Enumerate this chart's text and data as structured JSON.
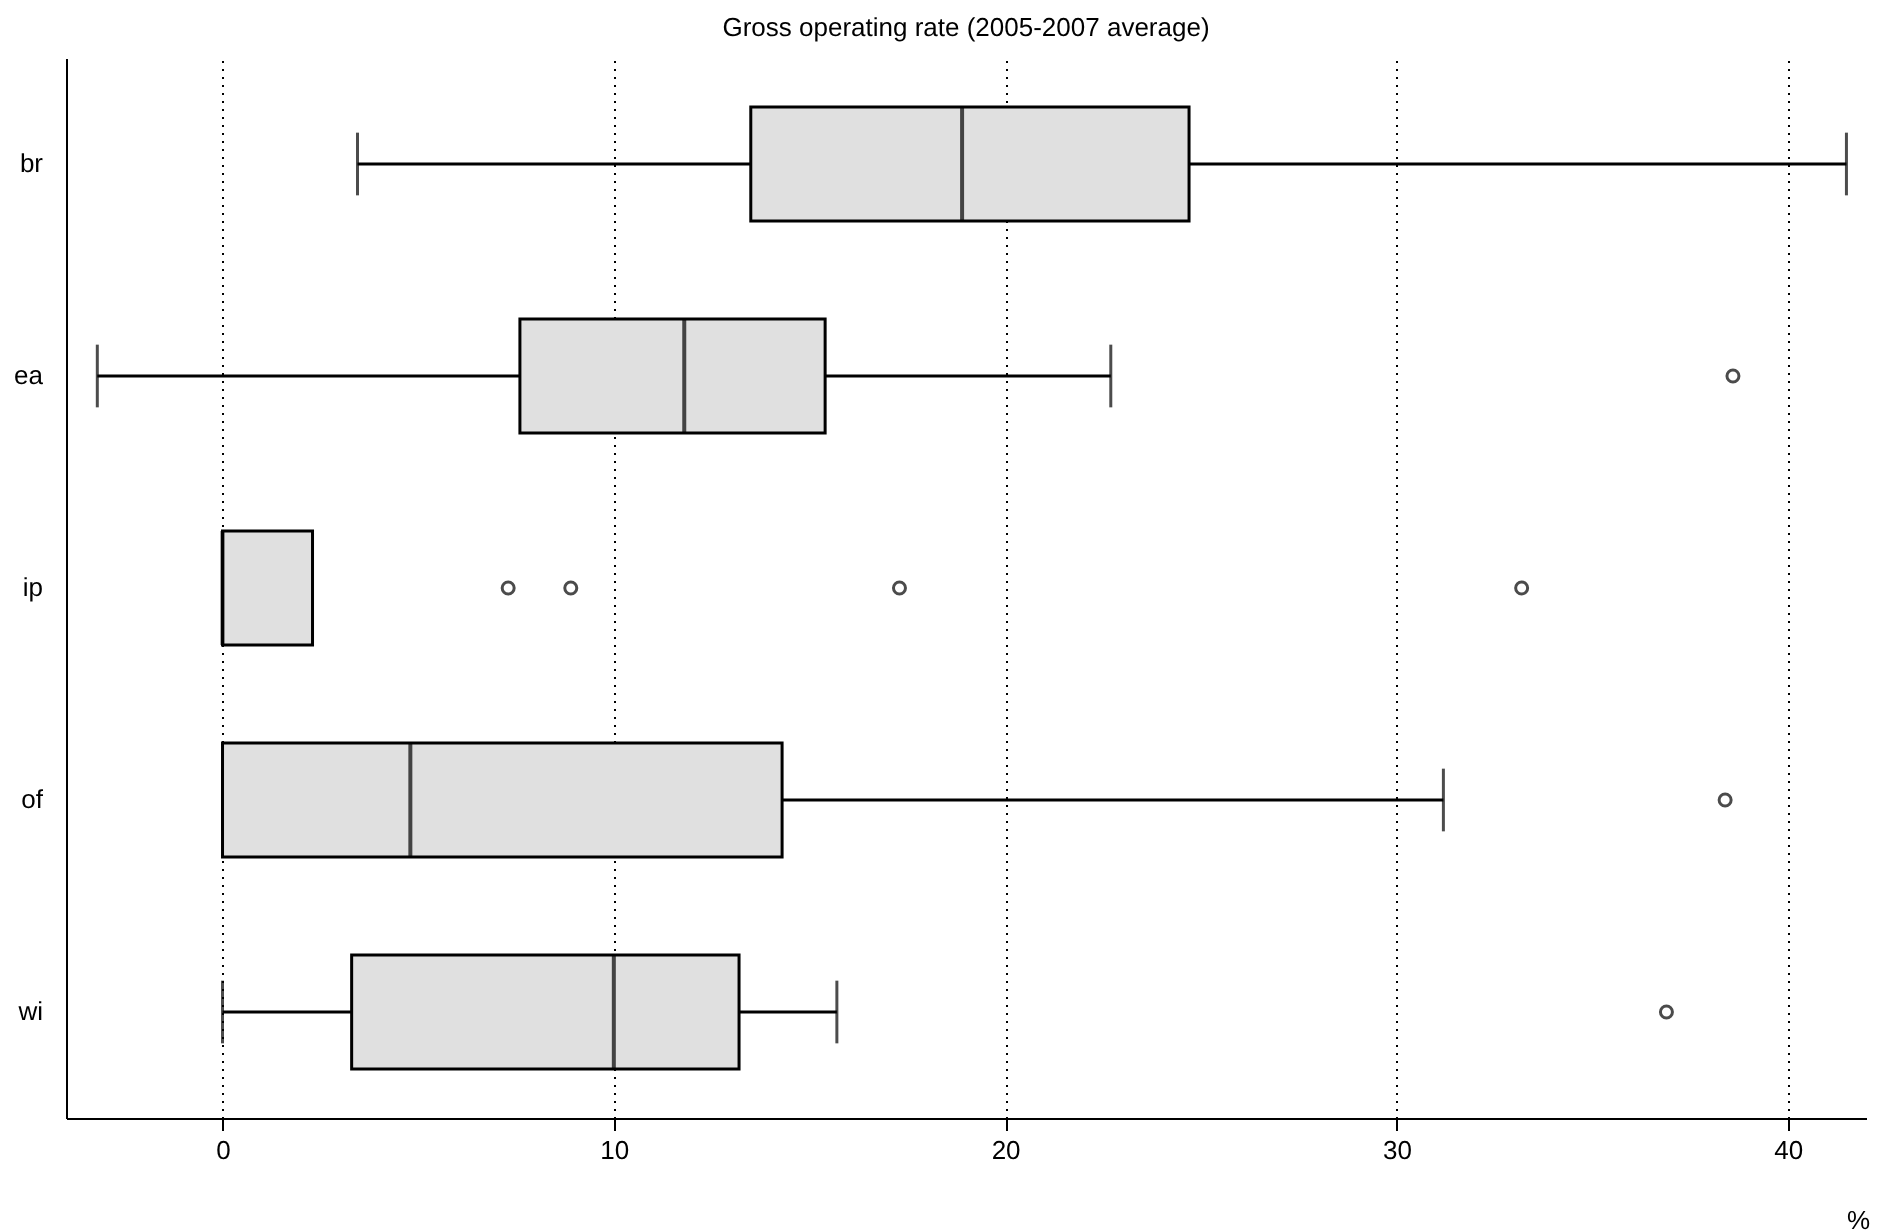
{
  "chart_data": {
    "type": "box",
    "title": "Gross operating rate (2005-2007 average)",
    "xlabel": "%",
    "orientation": "horizontal",
    "categories": [
      "br",
      "ea",
      "ip",
      "of",
      "wi"
    ],
    "series": [
      {
        "color": "#e0e0e0",
        "boxes": [
          {
            "low": 3.45,
            "q1": 13.5,
            "median": 18.9,
            "q3": 24.7,
            "high": 41.5
          },
          {
            "low": -3.2,
            "q1": 7.6,
            "median": 11.8,
            "q3": 15.4,
            "high": 22.7,
            "outliers": [
              38.6
            ]
          },
          {
            "low": 0,
            "q1": 0,
            "median": 0,
            "q3": 2.3,
            "high": 2.3,
            "outliers": [
              7.3,
              8.9,
              17.3,
              33.2
            ]
          },
          {
            "low": 0,
            "q1": 0,
            "median": 4.8,
            "q3": 14.3,
            "high": 31.2,
            "outliers": [
              38.4
            ]
          },
          {
            "low": 0,
            "q1": 3.3,
            "median": 10,
            "q3": 13.2,
            "high": 15.7,
            "outliers": [
              36.9
            ]
          }
        ]
      }
    ],
    "xlim": [
      -4,
      42
    ],
    "xticks": [
      0,
      10,
      20,
      30,
      40
    ],
    "grid": "x",
    "marker": "circle"
  }
}
